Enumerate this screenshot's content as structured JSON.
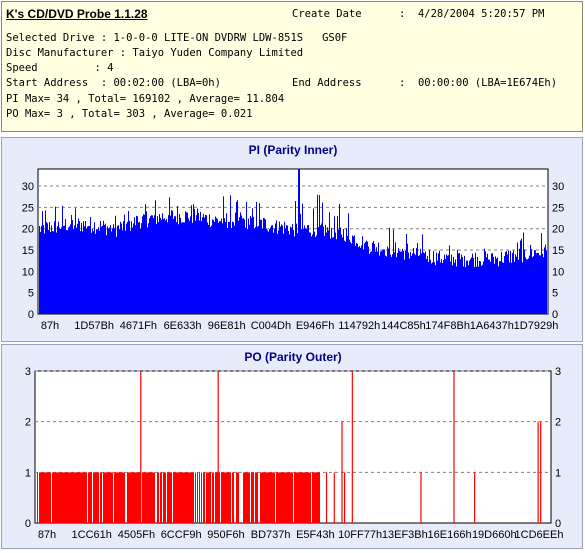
{
  "header": {
    "app_title": "K's CD/DVD Probe 1.1.28",
    "create_date_label": "Create Date",
    "create_date_value": ":  4/28/2004 5:20:57 PM",
    "selected_drive": "Selected Drive : 1-0-0-0 LITE-ON DVDRW LDW-851S   GS0F",
    "disc_manufacturer": "Disc Manufacturer : Taiyo Yuden Company Limited",
    "speed": "Speed         : 4",
    "start_address": "Start Address  : 00:02:00 (LBA=0h)",
    "end_address_label": "End Address",
    "end_address_value": ":  00:00:00 (LBA=1E674Eh)",
    "pi_summary": "PI Max= 34 , Total= 169102 , Average= 11.804",
    "po_summary": "PO Max= 3 , Total= 303 , Average= 0.021"
  },
  "colors": {
    "pi_bar": "#0000ff",
    "po_bar": "#ff0000",
    "title": "#000080",
    "grid": "#808080",
    "info_bg": "#ffffe1",
    "panel_bg": "#e8ecfa"
  },
  "chart_data": [
    {
      "type": "bar",
      "title": "PI (Parity Inner)",
      "ylim": [
        0,
        34
      ],
      "yticks": [
        0,
        5,
        10,
        15,
        20,
        25,
        30
      ],
      "xlabels": [
        "87h",
        "1D57Bh",
        "4671Fh",
        "6E633h",
        "96E81h",
        "C004Dh",
        "E946Fh",
        "114792h",
        "144C85h",
        "174F8Bh",
        "1A6437h",
        "1D7929h"
      ],
      "grid": true,
      "envelope": {
        "x": [
          0,
          0.05,
          0.1,
          0.15,
          0.2,
          0.25,
          0.3,
          0.35,
          0.4,
          0.45,
          0.5,
          0.55,
          0.6,
          0.65,
          0.7,
          0.75,
          0.8,
          0.85,
          0.9,
          0.95,
          1.0
        ],
        "typical": [
          20,
          21,
          21,
          20,
          22,
          23,
          23,
          22,
          22,
          21,
          20,
          20,
          19,
          16,
          15,
          14,
          13,
          13,
          13,
          14,
          15
        ],
        "peak": [
          26,
          26,
          25,
          25,
          28,
          29,
          31,
          28,
          28,
          27,
          28,
          30,
          27,
          23,
          21,
          19,
          17,
          17,
          17,
          19,
          21
        ]
      },
      "max": 34,
      "max_at": 0.51
    },
    {
      "type": "bar",
      "title": "PO (Parity Outer)",
      "ylim": [
        0,
        3
      ],
      "yticks": [
        0,
        1,
        2,
        3
      ],
      "xlabels": [
        "87h",
        "1CC61h",
        "4505Fh",
        "6CCF9h",
        "950F6h",
        "BD737h",
        "E5F43h",
        "10FF77h",
        "13EF3Bh",
        "16E166h",
        "19D660h",
        "1CD6EEh"
      ],
      "grid": true,
      "dense_range_value1": [
        0.0,
        0.55
      ],
      "spikes": [
        {
          "x": 0.205,
          "value": 3
        },
        {
          "x": 0.355,
          "value": 3
        },
        {
          "x": 0.595,
          "value": 2
        },
        {
          "x": 0.615,
          "value": 3
        },
        {
          "x": 0.748,
          "value": 1
        },
        {
          "x": 0.812,
          "value": 3
        },
        {
          "x": 0.852,
          "value": 1
        },
        {
          "x": 0.975,
          "value": 2
        },
        {
          "x": 0.98,
          "value": 2
        },
        {
          "x": 0.565,
          "value": 1
        },
        {
          "x": 0.58,
          "value": 1
        },
        {
          "x": 0.6,
          "value": 1
        }
      ]
    }
  ]
}
